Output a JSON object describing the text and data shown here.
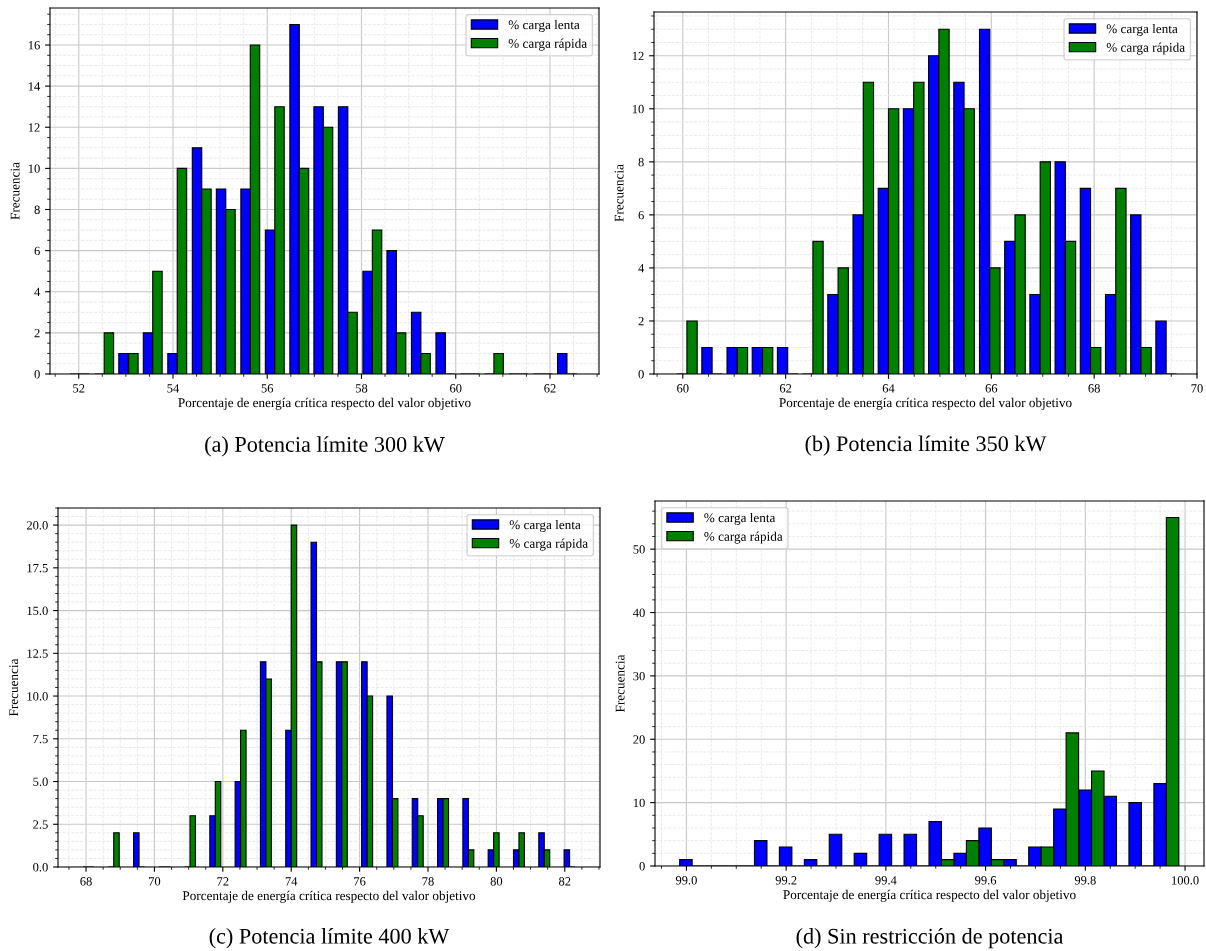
{
  "chart_data": [
    {
      "type": "bar",
      "title": "(a) Potencia límite 300 kW",
      "xlabel": "Porcentaje de energía crítica respecto del valor objetivo",
      "ylabel": "Frecuencia",
      "series": [
        {
          "name": "% carga lenta",
          "color": "#0000ff",
          "x": [
            51.92,
            52.44,
            52.95,
            53.47,
            53.99,
            54.51,
            55.02,
            55.54,
            56.06,
            56.58,
            57.09,
            57.61,
            58.13,
            58.64,
            59.16,
            59.68,
            60.2,
            60.71,
            61.23,
            61.75,
            62.26
          ],
          "values": [
            0,
            0,
            1,
            2,
            1,
            11,
            9,
            9,
            7,
            17,
            13,
            13,
            5,
            6,
            3,
            2,
            0,
            0,
            0,
            0,
            1
          ]
        },
        {
          "name": "% carga rápida",
          "color": "#008000",
          "x": [
            52.12,
            52.64,
            53.16,
            53.67,
            54.19,
            54.71,
            55.22,
            55.74,
            56.26,
            56.78,
            57.29,
            57.81,
            58.33,
            58.84,
            59.36,
            59.88,
            60.4,
            60.91,
            61.43,
            61.95,
            62.47
          ],
          "values": [
            0,
            2,
            1,
            5,
            10,
            9,
            8,
            16,
            13,
            10,
            12,
            3,
            7,
            2,
            1,
            0,
            0,
            1,
            0,
            0,
            0
          ]
        }
      ],
      "xlim": [
        51.39,
        63.04
      ],
      "xticks": [
        52,
        54,
        56,
        58,
        60,
        62
      ],
      "ylim": [
        0,
        17.8
      ],
      "yticks": [
        0,
        2,
        4,
        6,
        8,
        10,
        12,
        14,
        16
      ],
      "grid": true,
      "legend": "top right"
    },
    {
      "type": "bar",
      "title": "(b) Potencia límite 350 kW",
      "xlabel": "Porcentaje de energía crítica respecto del valor objetivo",
      "ylabel": "Frecuencia",
      "series": [
        {
          "name": "% carga lenta",
          "color": "#0000ff",
          "x": [
            59.98,
            60.47,
            60.96,
            61.45,
            61.94,
            62.43,
            62.92,
            63.41,
            63.9,
            64.39,
            64.88,
            65.37,
            65.87,
            66.36,
            66.85,
            67.34,
            67.83,
            68.32,
            68.81,
            69.3
          ],
          "values": [
            0,
            1,
            1,
            1,
            1,
            0,
            3,
            6,
            7,
            10,
            12,
            11,
            13,
            5,
            3,
            8,
            7,
            3,
            6,
            2
          ]
        },
        {
          "name": "% carga rápida",
          "color": "#008000",
          "x": [
            60.18,
            60.67,
            61.16,
            61.65,
            62.14,
            62.63,
            63.12,
            63.61,
            64.1,
            64.59,
            65.08,
            65.57,
            66.07,
            66.56,
            67.05,
            67.54,
            68.03,
            68.52,
            69.01,
            69.5
          ],
          "values": [
            2,
            0,
            1,
            1,
            0,
            5,
            4,
            11,
            10,
            11,
            13,
            10,
            4,
            6,
            8,
            5,
            1,
            7,
            1,
            0
          ]
        }
      ],
      "xlim": [
        59.44,
        70
      ],
      "xticks": [
        60,
        62,
        64,
        66,
        68,
        70
      ],
      "ylim": [
        0,
        13.65
      ],
      "yticks": [
        0,
        2,
        4,
        6,
        8,
        10,
        12
      ],
      "grid": true,
      "legend": "top right"
    },
    {
      "type": "bar",
      "title": "(c) Potencia límite 400 kW",
      "xlabel": "Porcentaje de energía crítica respecto del valor objetivo",
      "ylabel": "Frecuencia",
      "series": [
        {
          "name": "% carga lenta",
          "color": "#0000ff",
          "x": [
            67.99,
            68.73,
            69.47,
            70.22,
            70.96,
            71.7,
            72.44,
            73.18,
            73.92,
            74.66,
            75.4,
            76.14,
            76.88,
            77.62,
            78.36,
            79.1,
            79.84,
            80.58,
            81.32,
            82.06
          ],
          "values": [
            0,
            0,
            2,
            0,
            0,
            3,
            5,
            12,
            8,
            19,
            12,
            12,
            10,
            4,
            4,
            4,
            1,
            1,
            2,
            1
          ]
        },
        {
          "name": "% carga rápida",
          "color": "#008000",
          "x": [
            68.15,
            68.89,
            69.63,
            70.38,
            71.12,
            71.86,
            72.6,
            73.34,
            74.08,
            74.82,
            75.56,
            76.3,
            77.04,
            77.78,
            78.52,
            79.26,
            80.0,
            80.74,
            81.48,
            82.22
          ],
          "values": [
            0,
            2,
            0,
            0,
            3,
            5,
            8,
            11,
            20,
            12,
            12,
            10,
            4,
            3,
            4,
            1,
            2,
            2,
            1,
            0
          ]
        }
      ],
      "xlim": [
        67.18,
        83.03
      ],
      "xticks": [
        68,
        70,
        72,
        74,
        76,
        78,
        80,
        82
      ],
      "ylim": [
        0,
        21.0
      ],
      "yticks": [
        {
          "value": 0,
          "label": "0.0"
        },
        {
          "value": 2.5,
          "label": "2.5"
        },
        {
          "value": 5,
          "label": "5.0"
        },
        {
          "value": 7.5,
          "label": "7.5"
        },
        {
          "value": 10,
          "label": "10.0"
        },
        {
          "value": 12.5,
          "label": "12.5"
        },
        {
          "value": 15,
          "label": "15.0"
        },
        {
          "value": 17.5,
          "label": "17.5"
        },
        {
          "value": 20,
          "label": "20.0"
        }
      ],
      "grid": true,
      "legend": "top right"
    },
    {
      "type": "bar",
      "title": "(d) Sin restricción de potencia",
      "xlabel": "Porcentaje de energía crítica respecto del valor objetivo",
      "ylabel": "Frecuencia",
      "series": [
        {
          "name": "% carga lenta",
          "color": "#0000ff",
          "x": [
            98.999,
            99.049,
            99.099,
            99.149,
            99.199,
            99.249,
            99.299,
            99.349,
            99.399,
            99.449,
            99.499,
            99.549,
            99.599,
            99.649,
            99.699,
            99.749,
            99.8,
            99.85,
            99.9,
            99.95
          ],
          "values": [
            1,
            0,
            0,
            4,
            3,
            1,
            5,
            2,
            5,
            5,
            7,
            2,
            6,
            1,
            3,
            9,
            12,
            11,
            10,
            13
          ]
        },
        {
          "name": "% carga rápida",
          "color": "#008000",
          "x": [
            99.024,
            99.074,
            99.124,
            99.174,
            99.224,
            99.274,
            99.324,
            99.374,
            99.424,
            99.474,
            99.524,
            99.574,
            99.624,
            99.674,
            99.724,
            99.774,
            99.825,
            99.875,
            99.925,
            99.975
          ],
          "values": [
            0,
            0,
            0,
            0,
            0,
            0,
            0,
            0,
            0,
            0,
            1,
            4,
            1,
            0,
            3,
            21,
            15,
            0,
            0,
            55
          ]
        }
      ],
      "xlim": [
        98.937,
        100.038
      ],
      "xticks": [
        {
          "value": 99.0,
          "label": "99.0"
        },
        {
          "value": 99.2,
          "label": "99.2"
        },
        {
          "value": 99.4,
          "label": "99.4"
        },
        {
          "value": 99.6,
          "label": "99.6"
        },
        {
          "value": 99.8,
          "label": "99.8"
        },
        {
          "value": 100.0,
          "label": "100.0"
        }
      ],
      "ylim": [
        0,
        57.6
      ],
      "yticks": [
        0,
        10,
        20,
        30,
        40,
        50
      ],
      "grid": true,
      "legend": "top left"
    }
  ]
}
